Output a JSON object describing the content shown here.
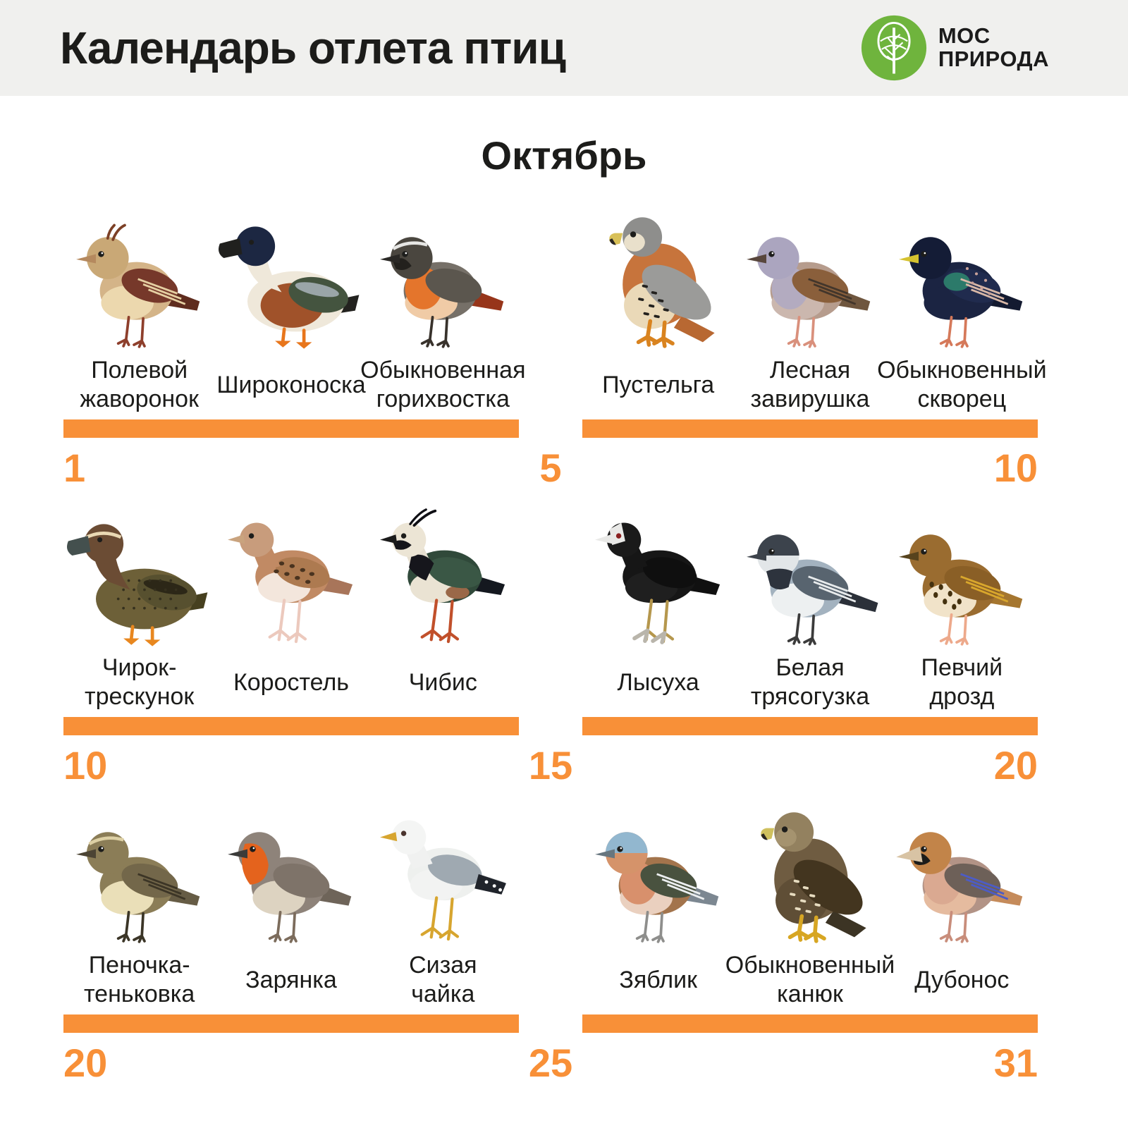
{
  "header": {
    "title": "Календарь отлета птиц",
    "logo": {
      "line1": "МОС",
      "line2": "ПРИРОДА"
    }
  },
  "month_title": "Октябрь",
  "colors": {
    "accent": "#f89038",
    "header_bg": "#f0f0ee",
    "page_bg": "#ffffff",
    "text": "#1c1c1a",
    "logo_green": "#6fb43d"
  },
  "rows": [
    {
      "start_label": "1",
      "mid_label": "5",
      "end_label": "10",
      "birds": [
        {
          "id": "field-lark",
          "name": "Полевой\nжаворонок",
          "type": "songbird",
          "palette": {
            "body": "#d4b488",
            "belly": "#ecd8ae",
            "head": "#c9a876",
            "wing": "#76382a",
            "wingDetail": "#e5cfa2",
            "tail": "#5f2c1e",
            "beak": "#b5895e",
            "legs": "#8e3f2c",
            "crest": "#7c4026"
          }
        },
        {
          "id": "shoveler",
          "name": "Широконоска",
          "type": "duck",
          "palette": {
            "body": "#efe8da",
            "flank": "#a0522a",
            "head": "#1c2742",
            "neck": "#efe8da",
            "beak": "#20201e",
            "wing": "#44543f",
            "wingDetail": "#9aa5a8",
            "tail": "#23221f",
            "legs": "#e8761c"
          }
        },
        {
          "id": "redstart",
          "name": "Обыкновенная\nгорихвостка",
          "type": "songbird",
          "palette": {
            "body": "#767068",
            "belly": "#f0cba6",
            "breast": "#e4752c",
            "head": "#4a463f",
            "browStripe": "#e6e6e4",
            "mask": "#23211d",
            "wing": "#5b564e",
            "tail": "#97351a",
            "beak": "#2b2926",
            "legs": "#38322c"
          }
        },
        {
          "id": "kestrel",
          "name": "Пустельга",
          "type": "raptor",
          "palette": {
            "body": "#c7743c",
            "belly": "#ead9b8",
            "head": "#8e8e8c",
            "face": "#e9e0cb",
            "wing": "#9b9b99",
            "spots": "#23211e",
            "tail": "#b86832",
            "beak": "#d8c058",
            "legs": "#d9831f"
          }
        },
        {
          "id": "dunnock",
          "name": "Лесная\nзавирушка",
          "type": "songbird",
          "palette": {
            "body": "#b69c8d",
            "belly": "#cbb7ae",
            "breast": "#b3abc0",
            "head": "#aba5bf",
            "wing": "#8a5f3b",
            "wingDetail": "#43362b",
            "tail": "#6f563e",
            "beak": "#58463c",
            "legs": "#d9907c"
          }
        },
        {
          "id": "starling",
          "name": "Обыкновенный\nскворец",
          "type": "songbird",
          "palette": {
            "body": "#1b2442",
            "belly": "#1b2442",
            "head": "#141c36",
            "wing": "#202b4e",
            "patch": "#2c7a6a",
            "wingDetail": "#d8b7a6",
            "speckle": "#c9a29a",
            "tail": "#131a30",
            "beak": "#d5c22f",
            "legs": "#d5795a"
          }
        }
      ]
    },
    {
      "start_label": "10",
      "mid_label": "15",
      "end_label": "20",
      "birds": [
        {
          "id": "garganey",
          "name": "Чирок-\nтрескунок",
          "type": "duck",
          "palette": {
            "body": "#6d6038",
            "head": "#6b4c34",
            "neck": "#6b4c34",
            "browStripe": "#ead9b4",
            "beak": "#44504e",
            "wing": "#57502f",
            "wingDetail": "#2c2717",
            "speckle": "#35301e",
            "tail": "#46401f",
            "legs": "#e8871f"
          }
        },
        {
          "id": "corncrake",
          "name": "Коростель",
          "type": "wader",
          "palette": {
            "body": "#c18a64",
            "belly": "#f3e6dc",
            "head": "#c89c7c",
            "spots": "#49331f",
            "wing": "#ad7a50",
            "tail": "#a8755a",
            "beak": "#c9a37e",
            "legs": "#ecc9bd"
          }
        },
        {
          "id": "lapwing",
          "name": "Чибис",
          "type": "wader",
          "palette": {
            "body": "#30493a",
            "belly": "#eae3d3",
            "head": "#ece5d5",
            "neck": "#e6dfd0",
            "mask": "#15151a",
            "bib": "#16161c",
            "crest": "#0f0f14",
            "wing": "#3a5745",
            "vent": "#9a6848",
            "tail": "#14181f",
            "beak": "#1b1b1b",
            "legs": "#c1502b"
          }
        },
        {
          "id": "coot",
          "name": "Лысуха",
          "type": "wader",
          "palette": {
            "body": "#161616",
            "belly": "#1f1f1f",
            "head": "#1a1a1a",
            "neck": "#161616",
            "shield": "#e9e9e7",
            "wing": "#0f0f0f",
            "tail": "#101010",
            "beak": "#e9e9e7",
            "eye": "#8a2020",
            "legs": "#b5974d",
            "feet": "#b9b5ab"
          }
        },
        {
          "id": "white-wagtail",
          "name": "Белая\nтрясогузка",
          "type": "songbird",
          "palette": {
            "body": "#a3b2bf",
            "belly": "#edf0f1",
            "head": "#e2e6e8",
            "cap": "#3c434c",
            "bib": "#2d333d",
            "wing": "#58646f",
            "wingDetail": "#e8ebec",
            "tail": "#2b3039",
            "longTail": true,
            "beak": "#3d434b",
            "legs": "#3b3b3b"
          }
        },
        {
          "id": "song-thrush",
          "name": "Певчий\nдрозд",
          "type": "songbird",
          "palette": {
            "body": "#9a6c30",
            "belly": "#f1e3c9",
            "head": "#9a6c30",
            "spots": "#44310f",
            "wing": "#8a5f26",
            "wingDetail": "#d9a72c",
            "tail": "#a5762f",
            "beak": "#57431d",
            "legs": "#eda98b"
          }
        }
      ]
    },
    {
      "start_label": "20",
      "mid_label": "25",
      "end_label": "31",
      "birds": [
        {
          "id": "chiffchaff",
          "name": "Пеночка-\nтеньковка",
          "type": "songbird",
          "palette": {
            "body": "#8b7d57",
            "belly": "#eadfb8",
            "head": "#8b7d57",
            "browStripe": "#ddd0a4",
            "wing": "#73674a",
            "wingDetail": "#3c3526",
            "tail": "#665c45",
            "beak": "#4c4434",
            "legs": "#3b3527"
          }
        },
        {
          "id": "robin",
          "name": "Зарянка",
          "type": "songbird",
          "palette": {
            "body": "#8e837a",
            "belly": "#ddd3c1",
            "head": "#8e837a",
            "breastFace": "#e4631d",
            "wing": "#7e7369",
            "tail": "#6e6459",
            "beak": "#3b3b39",
            "legs": "#7c6c5c"
          }
        },
        {
          "id": "common-gull",
          "name": "Сизая\nчайка",
          "type": "wader",
          "palette": {
            "body": "#eef0ee",
            "belly": "#f2f3f2",
            "head": "#f4f5f4",
            "neck": "#f0f1f0",
            "wing": "#9fa9b1",
            "wingTip": "#20242b",
            "tail": "#dfe2e2",
            "beak": "#d7a52f",
            "legs": "#d7a52f",
            "eye": "#4a342e"
          }
        },
        {
          "id": "chaffinch",
          "name": "Зяблик",
          "type": "songbird",
          "palette": {
            "body": "#a3744c",
            "belly": "#ead0bf",
            "breast": "#d8906c",
            "head": "#d5936a",
            "cap": "#92b7cf",
            "wing": "#49523f",
            "wingDetail": "#eceff0",
            "tail": "#7c8791",
            "beak": "#67767f",
            "legs": "#8e8e8c"
          }
        },
        {
          "id": "buzzard",
          "name": "Обыкновенный\nканюк",
          "type": "raptor",
          "palette": {
            "body": "#6f5c41",
            "belly": "#5f4e36",
            "head": "#93815f",
            "face": "#a5936f",
            "wing": "#43351f",
            "spots": "#e7dcc0",
            "tail": "#3c3424",
            "beak": "#cfc05e",
            "legs": "#d7a623"
          }
        },
        {
          "id": "hawfinch",
          "name": "Дубонос",
          "type": "songbird",
          "palette": {
            "body": "#b29386",
            "belly": "#e5bb9f",
            "breast": "#daa991",
            "head": "#c28449",
            "mask": "#1c1c1a",
            "wing": "#6d6058",
            "wingDetail": "#4d5cc5",
            "tail": "#c58b5b",
            "beak": "#d8c3a4",
            "bigBeak": true,
            "legs": "#c88d7b"
          }
        }
      ]
    }
  ]
}
